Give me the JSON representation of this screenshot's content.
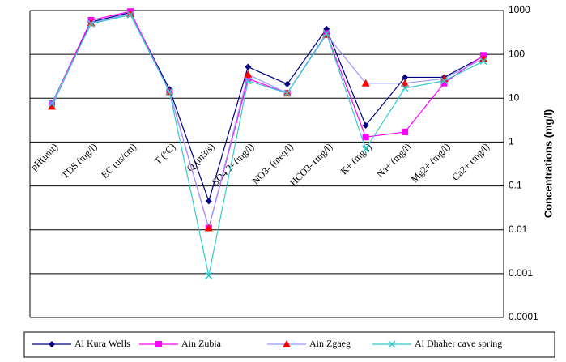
{
  "chart_data": {
    "type": "line",
    "y_label": "Concentrations (mg/l)",
    "categories": [
      "pH(unit)",
      "TDS (mg/l)",
      "EC (us/cm)",
      "T (°C)",
      "Q (m3/s)",
      "SO4 2- (mg/l)",
      "NO3- (meq/l)",
      "HCO3- (mg/l)",
      "K+ (mg/l)",
      "Na+ (mg/l)",
      "Mg2+ (mg/l)",
      "Ca2+ (mg/l)"
    ],
    "series": [
      {
        "name": "Al Kura Wells",
        "color": "#000080",
        "marker_color": "#000080",
        "marker": "diamond",
        "values": [
          7.5,
          550,
          900,
          16,
          0.045,
          52,
          21,
          380,
          2.4,
          30,
          30,
          90
        ]
      },
      {
        "name": "Ain Zubia",
        "color": "#ff00ff",
        "marker_color": "#ff00ff",
        "marker": "square",
        "values": [
          7.5,
          600,
          950,
          14,
          0.011,
          28,
          13,
          300,
          1.3,
          1.7,
          22,
          95
        ]
      },
      {
        "name": "Ain Zgaeg",
        "color": "#9999ff",
        "marker_color": "#ff0000",
        "marker": "triangle",
        "values": [
          6.5,
          520,
          850,
          14,
          0.011,
          35,
          13,
          280,
          22,
          22,
          28,
          80
        ]
      },
      {
        "name": "Al Dhaher cave spring",
        "color": "#33cccc",
        "marker_color": "#33cccc",
        "marker": "x",
        "values": [
          7.5,
          500,
          800,
          14,
          0.0009,
          25,
          13,
          300,
          0.7,
          17,
          25,
          70
        ]
      }
    ],
    "log_y": true,
    "ylim": [
      0.0001,
      1000
    ],
    "yticks": [
      1000,
      100,
      10,
      1,
      0.1,
      0.01,
      0.001,
      0.0001
    ],
    "grid": true,
    "legend": "bottom"
  }
}
